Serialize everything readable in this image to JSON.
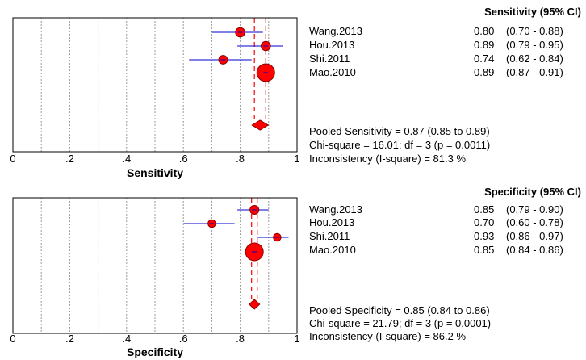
{
  "chart_data": [
    {
      "type": "forest",
      "xlabel": "Sensitivity",
      "xlim": [
        0,
        1
      ],
      "x_ticks": [
        "0",
        ".2",
        ".4",
        ".6",
        ".8",
        "1"
      ],
      "grid": true,
      "header": "Sensitivity (95% CI)",
      "studies": [
        {
          "name": "Wang.2013",
          "estimate": 0.8,
          "ci_low": 0.7,
          "ci_high": 0.88,
          "value_text": "0.80",
          "ci_text": "(0.70 - 0.88)",
          "weight": 0.35
        },
        {
          "name": "Hou.2013",
          "estimate": 0.89,
          "ci_low": 0.79,
          "ci_high": 0.95,
          "value_text": "0.89",
          "ci_text": "(0.79 - 0.95)",
          "weight": 0.34
        },
        {
          "name": "Shi.2011",
          "estimate": 0.74,
          "ci_low": 0.62,
          "ci_high": 0.84,
          "value_text": "0.74",
          "ci_text": "(0.62 - 0.84)",
          "weight": 0.3
        },
        {
          "name": "Mao.2010",
          "estimate": 0.89,
          "ci_low": 0.87,
          "ci_high": 0.91,
          "value_text": "0.89",
          "ci_text": "(0.87 - 0.91)",
          "weight": 1.0
        }
      ],
      "pooled": {
        "estimate": 0.87,
        "ci_low": 0.85,
        "ci_high": 0.89
      },
      "summary_lines": [
        "Pooled Sensitivity = 0.87 (0.85 to 0.89)",
        "Chi-square = 16.01; df =  3 (p = 0.0011)",
        "Inconsistency (I-square) = 81.3 %"
      ]
    },
    {
      "type": "forest",
      "xlabel": "Specificity",
      "xlim": [
        0,
        1
      ],
      "x_ticks": [
        "0",
        ".2",
        ".4",
        ".6",
        ".8",
        "1"
      ],
      "grid": true,
      "header": "Specificity (95% CI)",
      "studies": [
        {
          "name": "Wang.2013",
          "estimate": 0.85,
          "ci_low": 0.79,
          "ci_high": 0.9,
          "value_text": "0.85",
          "ci_text": "(0.79 - 0.90)",
          "weight": 0.32
        },
        {
          "name": "Hou.2013",
          "estimate": 0.7,
          "ci_low": 0.6,
          "ci_high": 0.78,
          "value_text": "0.70",
          "ci_text": "(0.60 - 0.78)",
          "weight": 0.22
        },
        {
          "name": "Shi.2011",
          "estimate": 0.93,
          "ci_low": 0.86,
          "ci_high": 0.97,
          "value_text": "0.93",
          "ci_text": "(0.86 - 0.97)",
          "weight": 0.22
        },
        {
          "name": "Mao.2010",
          "estimate": 0.85,
          "ci_low": 0.84,
          "ci_high": 0.86,
          "value_text": "0.85",
          "ci_text": "(0.84 - 0.86)",
          "weight": 1.0
        }
      ],
      "pooled": {
        "estimate": 0.85,
        "ci_low": 0.84,
        "ci_high": 0.86
      },
      "summary_lines": [
        "Pooled Specificity = 0.85 (0.84 to 0.86)",
        "Chi-square = 21.79; df =  3 (p = 0.0001)",
        "Inconsistency (I-square) = 86.2 %"
      ]
    }
  ],
  "colors": {
    "marker_fill": "#ff0000",
    "marker_stroke": "#8b0000",
    "ci_line": "#0000cc",
    "pooled_line": "#ff0000",
    "grid": "#999999",
    "frame": "#000000"
  }
}
